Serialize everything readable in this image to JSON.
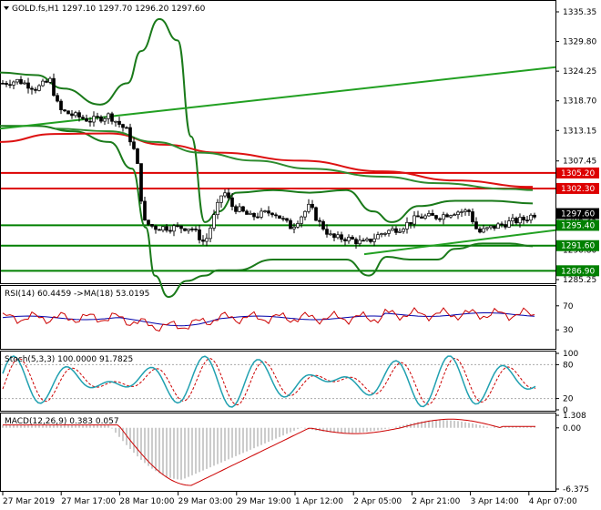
{
  "main": {
    "symbol_line": "GOLD.fs,H1  1297.10  1297.70  1296.20  1297.60",
    "price_ticks": [
      "1335.35",
      "1329.80",
      "1324.25",
      "1318.70",
      "1313.15",
      "1307.45",
      "1301.90",
      "1296.35",
      "1290.80",
      "1285.25"
    ],
    "horizontal_levels": [
      {
        "label": "1305.20",
        "color": "#dd0000",
        "text_color": "#ffffff"
      },
      {
        "label": "1302.30",
        "color": "#dd0000",
        "text_color": "#ffffff"
      },
      {
        "label": "1295.40",
        "color": "#008000",
        "text_color": "#ffffff"
      },
      {
        "label": "1291.60",
        "color": "#008000",
        "text_color": "#ffffff"
      },
      {
        "label": "1286.90",
        "color": "#008000",
        "text_color": "#ffffff"
      }
    ],
    "current_price": {
      "label": "1297.60"
    }
  },
  "rsi": {
    "title": "RSI(14) 60.4459  ->MA(18) 53.0195",
    "ticks": [
      "70",
      "30"
    ]
  },
  "stoch": {
    "title": "Stoch(5,3,3) 100.0000 91.7825",
    "ticks": [
      "100",
      "80",
      "20",
      "0"
    ]
  },
  "macd": {
    "title": "MACD(12,26,9) 0.383 0.057",
    "ticks": [
      "1.308",
      "0.00",
      "-6.375"
    ]
  },
  "time_axis": [
    "27 Mar 2019",
    "27 Mar 17:00",
    "28 Mar 10:00",
    "29 Mar 03:00",
    "29 Mar 19:00",
    "1 Apr 12:00",
    "2 Apr 05:00",
    "2 Apr 21:00",
    "3 Apr 14:00",
    "4 Apr 07:00"
  ],
  "colors": {
    "bollinger": "#1a7a1a",
    "ma_red": "#dd1111",
    "ma_green": "#2e8b2e",
    "trend_line": "#22a022",
    "candle": "#000000",
    "rsi_line": "#cc0000",
    "rsi_ma": "#0000aa",
    "stoch_main": "#20a0b0",
    "stoch_signal": "#cc0000",
    "macd_line": "#cc0000",
    "macd_hist": "#999999"
  }
}
